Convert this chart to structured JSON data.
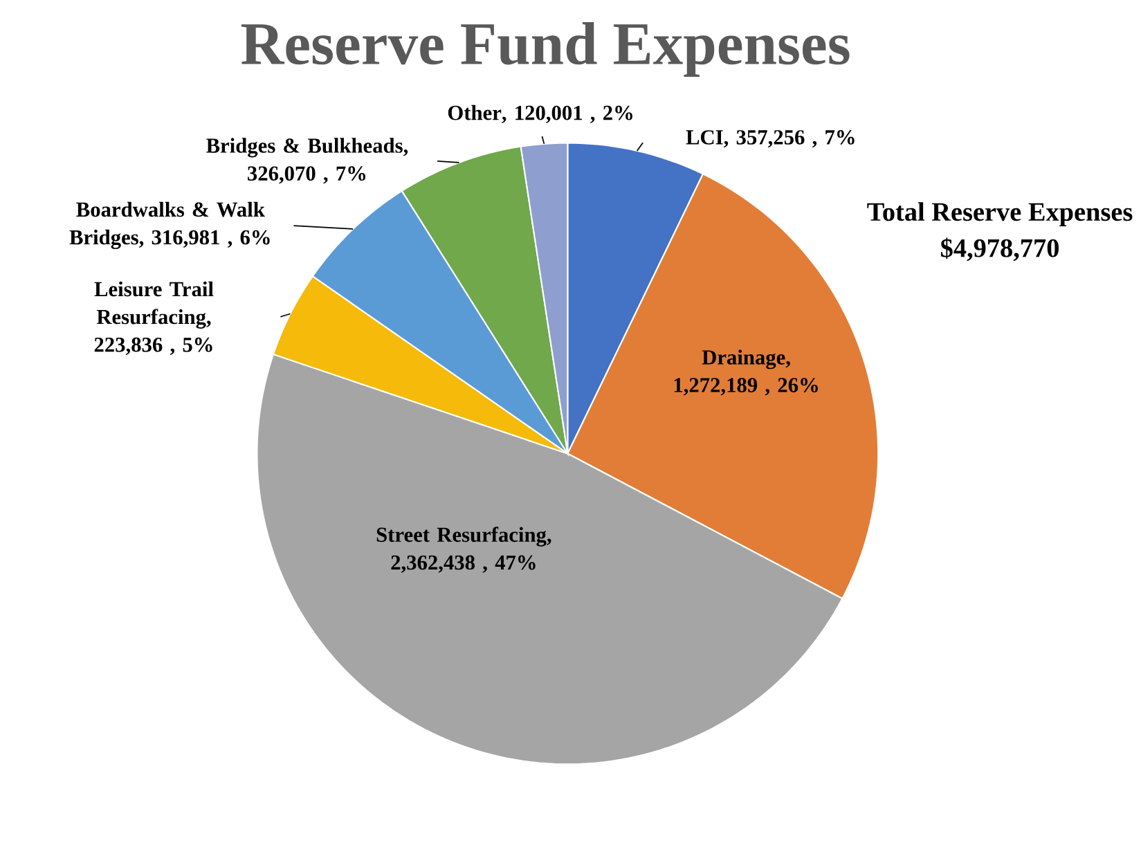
{
  "chart_data": {
    "type": "pie",
    "title": "Reserve Fund Expenses",
    "categories": [
      "LCI",
      "Drainage",
      "Street Resurfacing",
      "Leisure Trail Resurfacing",
      "Boardwalks  & Walk Bridges",
      "Bridges & Bulkheads",
      "Other"
    ],
    "values": [
      357256,
      1272189,
      2362438,
      223836,
      316981,
      326070,
      120001
    ],
    "value_labels": [
      ", 357,256 , 7%",
      ", 1,272,189 , 26%",
      ", 2,362,438 , 47%",
      ", 223,836 , 5%",
      ", 316,981 , 6%",
      ", 326,070 , 7%",
      ", 120,001 , 2%"
    ],
    "colors": [
      "#4472c4",
      "#e27d37",
      "#a5a5a5",
      "#f5ba0a",
      "#5b9bd5",
      "#70a84b",
      "#8e9fcf"
    ],
    "annotations": [
      "Total Reserve Expenses",
      "$4,978,770"
    ]
  }
}
